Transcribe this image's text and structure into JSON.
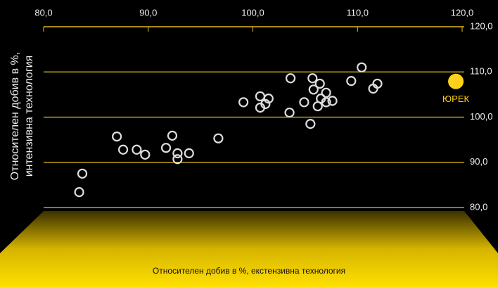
{
  "chart_data": {
    "type": "scatter",
    "xlabel": "Относителен добив в %, екстензивна технология",
    "ylabel": [
      "Относителен добив в %,",
      "интензивна технология"
    ],
    "x": [
      83.4,
      83.7,
      87.0,
      87.6,
      88.9,
      89.7,
      91.7,
      92.3,
      92.8,
      92.8,
      93.9,
      96.7,
      99.1,
      100.7,
      100.7,
      101.2,
      101.5,
      103.5,
      103.6,
      104.9,
      105.5,
      105.7,
      105.8,
      106.4,
      106.2,
      106.5,
      107.0,
      107.0,
      107.6,
      109.4,
      110.4,
      111.5,
      111.9
    ],
    "values": [
      83.4,
      87.5,
      95.7,
      92.8,
      92.8,
      91.7,
      93.2,
      95.9,
      92.0,
      90.7,
      92.0,
      95.3,
      103.3,
      104.6,
      102.1,
      102.9,
      104.1,
      101.0,
      108.6,
      103.3,
      98.5,
      108.6,
      106.1,
      107.4,
      102.4,
      104.1,
      105.4,
      103.3,
      103.6,
      108.0,
      111.0,
      106.3,
      107.4
    ],
    "color": "#dddddd",
    "highlight": {
      "label": "ЮРЕК",
      "x": 119.4,
      "y": 107.9,
      "color": "#ffd21a"
    },
    "xlim": [
      80,
      120
    ],
    "ylim": [
      80,
      120
    ],
    "xticks": [
      {
        "value": 80,
        "label": "80,0"
      },
      {
        "value": 90,
        "label": "90,0"
      },
      {
        "value": 100,
        "label": "100,0"
      },
      {
        "value": 110,
        "label": "110,0"
      },
      {
        "value": 120,
        "label": "120,0"
      }
    ],
    "yticks": [
      {
        "value": 80,
        "label": "80,0"
      },
      {
        "value": 90,
        "label": "90,0"
      },
      {
        "value": 100,
        "label": "100,0"
      },
      {
        "value": 110,
        "label": "110,0"
      },
      {
        "value": 120,
        "label": "120,0"
      }
    ],
    "grid": true,
    "grid_color": "#e8c21a"
  }
}
